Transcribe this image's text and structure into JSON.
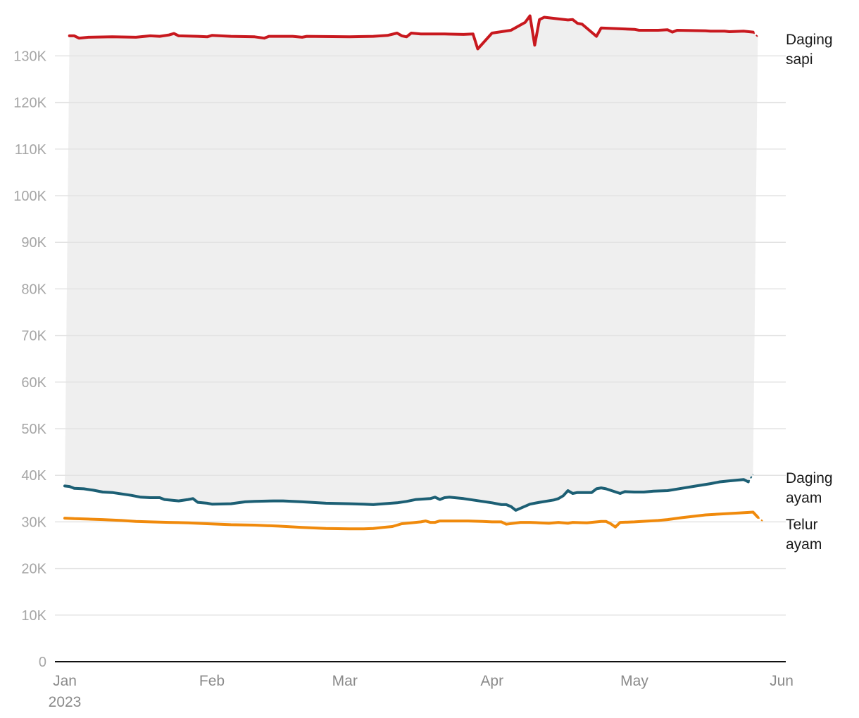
{
  "chart_data": {
    "type": "line",
    "title": "",
    "xlabel": "",
    "ylabel": "",
    "ylim": [
      0,
      135000
    ],
    "yticks": [
      0,
      10000,
      20000,
      30000,
      40000,
      50000,
      60000,
      70000,
      80000,
      90000,
      100000,
      110000,
      120000,
      130000
    ],
    "ytick_labels": [
      "0",
      "10K",
      "20K",
      "30K",
      "40K",
      "50K",
      "60K",
      "70K",
      "80K",
      "90K",
      "100K",
      "110K",
      "120K",
      "130K"
    ],
    "x_start": "2023-01-01",
    "x_end": "2023-06-01",
    "xticks": [
      {
        "day": 0,
        "label": "Jan",
        "sublabel": "2023"
      },
      {
        "day": 31,
        "label": "Feb",
        "sublabel": ""
      },
      {
        "day": 59,
        "label": "Mar",
        "sublabel": ""
      },
      {
        "day": 90,
        "label": "Apr",
        "sublabel": ""
      },
      {
        "day": 120,
        "label": "May",
        "sublabel": ""
      },
      {
        "day": 151,
        "label": "Jun",
        "sublabel": ""
      }
    ],
    "shaded_band": {
      "from_series": "Daging ayam",
      "to_series": "Daging sapi",
      "color": "#efefef"
    },
    "series": [
      {
        "name": "Daging sapi",
        "label_lines": [
          "Daging",
          "sapi"
        ],
        "color": "#c8181e",
        "last_value": 134000,
        "points": [
          [
            1,
            134300
          ],
          [
            2,
            134300
          ],
          [
            3,
            133800
          ],
          [
            5,
            134000
          ],
          [
            10,
            134100
          ],
          [
            15,
            134000
          ],
          [
            18,
            134300
          ],
          [
            20,
            134200
          ],
          [
            22,
            134500
          ],
          [
            23,
            134800
          ],
          [
            24,
            134300
          ],
          [
            28,
            134200
          ],
          [
            30,
            134100
          ],
          [
            31,
            134400
          ],
          [
            35,
            134200
          ],
          [
            40,
            134100
          ],
          [
            42,
            133800
          ],
          [
            43,
            134200
          ],
          [
            48,
            134200
          ],
          [
            50,
            134000
          ],
          [
            51,
            134200
          ],
          [
            60,
            134100
          ],
          [
            65,
            134200
          ],
          [
            68,
            134400
          ],
          [
            70,
            134900
          ],
          [
            71,
            134300
          ],
          [
            72,
            134100
          ],
          [
            73,
            134900
          ],
          [
            75,
            134700
          ],
          [
            80,
            134700
          ],
          [
            84,
            134600
          ],
          [
            86,
            134700
          ],
          [
            87,
            131500
          ],
          [
            90,
            134900
          ],
          [
            92,
            135200
          ],
          [
            94,
            135500
          ],
          [
            97,
            137200
          ],
          [
            98,
            138600
          ],
          [
            99,
            132300
          ],
          [
            100,
            137800
          ],
          [
            101,
            138300
          ],
          [
            106,
            137700
          ],
          [
            107,
            137800
          ],
          [
            108,
            137000
          ],
          [
            109,
            136800
          ],
          [
            112,
            134200
          ],
          [
            113,
            136000
          ],
          [
            120,
            135700
          ],
          [
            121,
            135500
          ],
          [
            125,
            135500
          ],
          [
            127,
            135600
          ],
          [
            128,
            135100
          ],
          [
            129,
            135500
          ],
          [
            135,
            135400
          ],
          [
            136,
            135300
          ],
          [
            139,
            135300
          ],
          [
            140,
            135200
          ],
          [
            143,
            135300
          ],
          [
            145,
            135100
          ],
          [
            146,
            134100
          ]
        ]
      },
      {
        "name": "Daging ayam",
        "label_lines": [
          "Daging",
          "ayam"
        ],
        "color": "#1c5f74",
        "last_value": 40200,
        "points": [
          [
            0,
            37700
          ],
          [
            1,
            37600
          ],
          [
            2,
            37200
          ],
          [
            4,
            37100
          ],
          [
            6,
            36800
          ],
          [
            8,
            36400
          ],
          [
            10,
            36300
          ],
          [
            12,
            36000
          ],
          [
            14,
            35700
          ],
          [
            16,
            35300
          ],
          [
            18,
            35200
          ],
          [
            20,
            35200
          ],
          [
            21,
            34800
          ],
          [
            24,
            34500
          ],
          [
            26,
            34800
          ],
          [
            27,
            35000
          ],
          [
            28,
            34200
          ],
          [
            30,
            34000
          ],
          [
            31,
            33800
          ],
          [
            35,
            33900
          ],
          [
            38,
            34300
          ],
          [
            40,
            34400
          ],
          [
            44,
            34500
          ],
          [
            46,
            34500
          ],
          [
            50,
            34300
          ],
          [
            55,
            34000
          ],
          [
            60,
            33900
          ],
          [
            63,
            33800
          ],
          [
            65,
            33700
          ],
          [
            66,
            33800
          ],
          [
            70,
            34100
          ],
          [
            72,
            34400
          ],
          [
            74,
            34800
          ],
          [
            77,
            35000
          ],
          [
            78,
            35300
          ],
          [
            79,
            34800
          ],
          [
            80,
            35200
          ],
          [
            81,
            35300
          ],
          [
            84,
            35000
          ],
          [
            86,
            34700
          ],
          [
            88,
            34400
          ],
          [
            90,
            34100
          ],
          [
            92,
            33700
          ],
          [
            93,
            33700
          ],
          [
            94,
            33300
          ],
          [
            95,
            32500
          ],
          [
            98,
            33800
          ],
          [
            100,
            34200
          ],
          [
            103,
            34700
          ],
          [
            104,
            35000
          ],
          [
            105,
            35600
          ],
          [
            106,
            36700
          ],
          [
            107,
            36100
          ],
          [
            108,
            36300
          ],
          [
            111,
            36300
          ],
          [
            112,
            37100
          ],
          [
            113,
            37300
          ],
          [
            114,
            37100
          ],
          [
            117,
            36100
          ],
          [
            118,
            36500
          ],
          [
            120,
            36400
          ],
          [
            122,
            36400
          ],
          [
            124,
            36600
          ],
          [
            127,
            36700
          ],
          [
            130,
            37200
          ],
          [
            133,
            37700
          ],
          [
            136,
            38200
          ],
          [
            138,
            38600
          ],
          [
            140,
            38800
          ],
          [
            143,
            39100
          ],
          [
            144,
            38600
          ],
          [
            145,
            40200
          ]
        ]
      },
      {
        "name": "Telur ayam",
        "label_lines": [
          "Telur",
          "ayam"
        ],
        "color": "#f08a0c",
        "last_value": 30200,
        "points": [
          [
            0,
            30800
          ],
          [
            2,
            30700
          ],
          [
            5,
            30600
          ],
          [
            8,
            30500
          ],
          [
            12,
            30300
          ],
          [
            15,
            30100
          ],
          [
            18,
            30000
          ],
          [
            22,
            29900
          ],
          [
            26,
            29800
          ],
          [
            30,
            29600
          ],
          [
            35,
            29400
          ],
          [
            40,
            29300
          ],
          [
            45,
            29100
          ],
          [
            50,
            28800
          ],
          [
            55,
            28600
          ],
          [
            60,
            28500
          ],
          [
            63,
            28500
          ],
          [
            65,
            28600
          ],
          [
            67,
            28800
          ],
          [
            69,
            29000
          ],
          [
            71,
            29600
          ],
          [
            73,
            29800
          ],
          [
            75,
            30000
          ],
          [
            76,
            30200
          ],
          [
            77,
            29900
          ],
          [
            78,
            29900
          ],
          [
            79,
            30200
          ],
          [
            82,
            30200
          ],
          [
            85,
            30200
          ],
          [
            88,
            30100
          ],
          [
            90,
            30000
          ],
          [
            92,
            30000
          ],
          [
            93,
            29500
          ],
          [
            96,
            29900
          ],
          [
            98,
            29900
          ],
          [
            100,
            29800
          ],
          [
            102,
            29700
          ],
          [
            104,
            29900
          ],
          [
            105,
            29800
          ],
          [
            106,
            29700
          ],
          [
            107,
            29900
          ],
          [
            110,
            29800
          ],
          [
            113,
            30100
          ],
          [
            114,
            30100
          ],
          [
            115,
            29600
          ],
          [
            116,
            28900
          ],
          [
            117,
            29900
          ],
          [
            120,
            30000
          ],
          [
            125,
            30300
          ],
          [
            127,
            30500
          ],
          [
            130,
            30900
          ],
          [
            135,
            31500
          ],
          [
            140,
            31800
          ],
          [
            142,
            31900
          ],
          [
            145,
            32100
          ],
          [
            146,
            31000
          ],
          [
            147,
            30200
          ]
        ]
      }
    ]
  }
}
